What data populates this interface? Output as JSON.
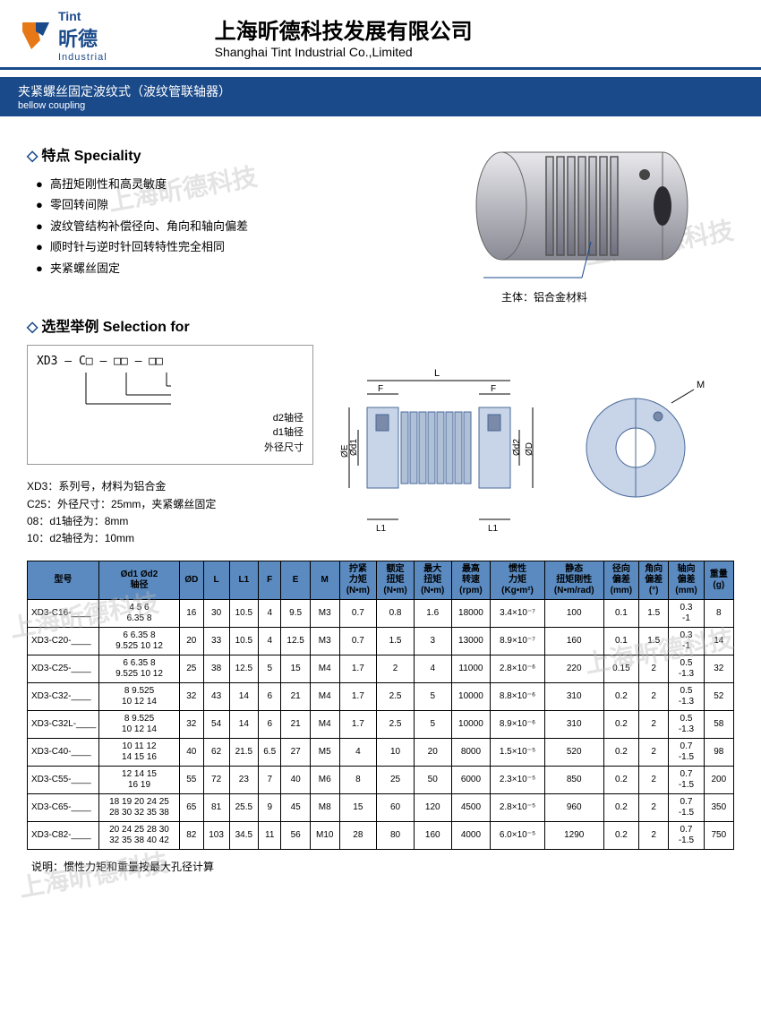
{
  "header": {
    "logo_main": "昕德",
    "logo_tagline": "Industrial",
    "logo_brand": "Tint",
    "company_cn": "上海昕德科技发展有限公司",
    "company_en": "Shanghai Tint Industrial Co.,Limited"
  },
  "title": {
    "cn": "夹紧螺丝固定波纹式（波纹管联轴器）",
    "en": "bellow coupling"
  },
  "speciality": {
    "heading": "特点  Speciality",
    "items": [
      "高扭矩刚性和高灵敏度",
      "零回转间隙",
      "波纹管结构补偿径向、角向和轴向偏差",
      "顺时针与逆时针回转特性完全相同",
      "夹紧螺丝固定"
    ]
  },
  "product_label": "主体：铝合金材料",
  "selection": {
    "heading": "选型举例  Selection for",
    "model_format": "XD3 — C□ — □□ — □□",
    "label_d2": "d2轴径",
    "label_d1": "d1轴径",
    "label_outer": "外径尺寸",
    "desc": [
      "XD3：系列号，材料为铝合金",
      "C25：外径尺寸：25mm，夹紧螺丝固定",
      "08：d1轴径为：8mm",
      "10：d2轴径为：10mm"
    ]
  },
  "diagram_labels": {
    "L": "L",
    "F": "F",
    "L1": "L1",
    "OE": "ØE",
    "Od1": "Ød1",
    "Od2": "Ød2",
    "OD": "ØD",
    "M": "M"
  },
  "table": {
    "columns": [
      "型号",
      "Ød1 Ød2\n轴径",
      "ØD",
      "L",
      "L1",
      "F",
      "E",
      "M",
      "拧紧\n力矩\n(N•m)",
      "额定\n扭矩\n(N•m)",
      "最大\n扭矩\n(N•m)",
      "最高\n转速\n(rpm)",
      "惯性\n力矩\n(Kg•m²)",
      "静态\n扭矩刚性\n(N•m/rad)",
      "径向\n偏差\n(mm)",
      "角向\n偏差\n(°)",
      "轴向\n偏差\n(mm)",
      "重量\n(g)"
    ],
    "rows": [
      [
        "XD3-C16-____",
        "4 5 6\n6.35 8",
        "16",
        "30",
        "10.5",
        "4",
        "9.5",
        "M3",
        "0.7",
        "0.8",
        "1.6",
        "18000",
        "3.4×10⁻⁷",
        "100",
        "0.1",
        "1.5",
        "0.3\n-1",
        "8"
      ],
      [
        "XD3-C20-____",
        "6 6.35 8\n9.525 10 12",
        "20",
        "33",
        "10.5",
        "4",
        "12.5",
        "M3",
        "0.7",
        "1.5",
        "3",
        "13000",
        "8.9×10⁻⁷",
        "160",
        "0.1",
        "1.5",
        "0.3\n-1",
        "14"
      ],
      [
        "XD3-C25-____",
        "6 6.35 8\n9.525 10 12",
        "25",
        "38",
        "12.5",
        "5",
        "15",
        "M4",
        "1.7",
        "2",
        "4",
        "11000",
        "2.8×10⁻⁶",
        "220",
        "0.15",
        "2",
        "0.5\n-1.3",
        "32"
      ],
      [
        "XD3-C32-____",
        "8 9.525\n10 12 14",
        "32",
        "43",
        "14",
        "6",
        "21",
        "M4",
        "1.7",
        "2.5",
        "5",
        "10000",
        "8.8×10⁻⁶",
        "310",
        "0.2",
        "2",
        "0.5\n-1.3",
        "52"
      ],
      [
        "XD3-C32L-____",
        "8 9.525\n10 12 14",
        "32",
        "54",
        "14",
        "6",
        "21",
        "M4",
        "1.7",
        "2.5",
        "5",
        "10000",
        "8.9×10⁻⁶",
        "310",
        "0.2",
        "2",
        "0.5\n-1.3",
        "58"
      ],
      [
        "XD3-C40-____",
        "10 11 12\n14 15 16",
        "40",
        "62",
        "21.5",
        "6.5",
        "27",
        "M5",
        "4",
        "10",
        "20",
        "8000",
        "1.5×10⁻⁵",
        "520",
        "0.2",
        "2",
        "0.7\n-1.5",
        "98"
      ],
      [
        "XD3-C55-____",
        "12 14 15\n16 19",
        "55",
        "72",
        "23",
        "7",
        "40",
        "M6",
        "8",
        "25",
        "50",
        "6000",
        "2.3×10⁻⁵",
        "850",
        "0.2",
        "2",
        "0.7\n-1.5",
        "200"
      ],
      [
        "XD3-C65-____",
        "18 19 20 24 25\n28 30 32 35 38",
        "65",
        "81",
        "25.5",
        "9",
        "45",
        "M8",
        "15",
        "60",
        "120",
        "4500",
        "2.8×10⁻⁵",
        "960",
        "0.2",
        "2",
        "0.7\n-1.5",
        "350"
      ],
      [
        "XD3-C82-____",
        "20 24 25 28 30\n32 35 38 40 42",
        "82",
        "103",
        "34.5",
        "11",
        "56",
        "M10",
        "28",
        "80",
        "160",
        "4000",
        "6.0×10⁻⁵",
        "1290",
        "0.2",
        "2",
        "0.7\n-1.5",
        "750"
      ]
    ]
  },
  "note": "说明：惯性力矩和重量按最大孔径计算",
  "watermark": "上海昕德科技",
  "colors": {
    "primary": "#1a4a8a",
    "th_bg": "#5a8ac0",
    "logo_orange": "#e67817"
  }
}
